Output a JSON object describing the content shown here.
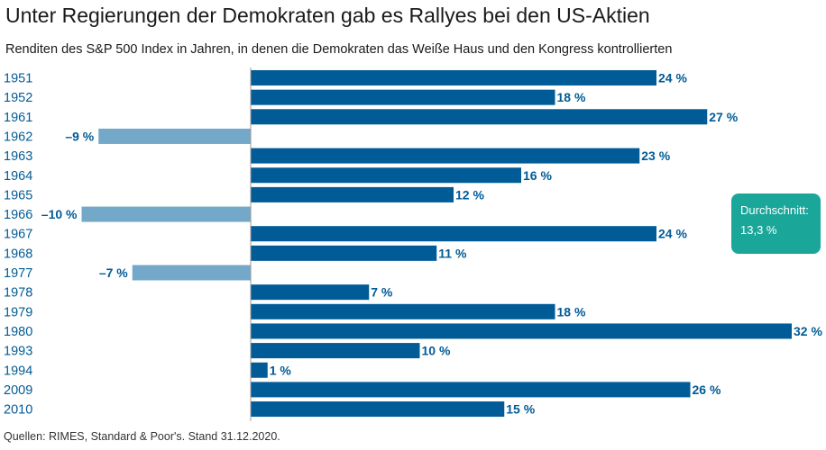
{
  "title": "Unter Regierungen der Demokraten gab es Rallyes bei den US-Aktien",
  "subtitle": "Renditen des S&P 500 Index in Jahren, in denen die Demokraten das Weiße Haus und den Kongress kontrollierten",
  "source": "Quellen: RIMES, Standard & Poor's. Stand 31.12.2020.",
  "callout": {
    "label": "Durchschnitt:",
    "value": "13,3 %"
  },
  "colors": {
    "positive": "#005b96",
    "negative": "#74a8c9",
    "label": "#005b96",
    "callout": "#1aa79a",
    "axis": "#999999"
  },
  "chart_data": {
    "type": "bar",
    "orientation": "horizontal",
    "title": "Unter Regierungen der Demokraten gab es Rallyes bei den US-Aktien",
    "xlabel": "",
    "ylabel": "",
    "xlim": [
      -15,
      34
    ],
    "grid": false,
    "categories": [
      "1951",
      "1952",
      "1961",
      "1962",
      "1963",
      "1964",
      "1965",
      "1966",
      "1967",
      "1968",
      "1977",
      "1978",
      "1979",
      "1980",
      "1993",
      "1994",
      "2009",
      "2010"
    ],
    "values": [
      24,
      18,
      27,
      -9,
      23,
      16,
      12,
      -10,
      24,
      11,
      -7,
      7,
      18,
      32,
      10,
      1,
      26,
      15
    ],
    "labels": [
      "24 %",
      "18 %",
      "27 %",
      "–9 %",
      "23 %",
      "16 %",
      "12 %",
      "–10 %",
      "24 %",
      "11 %",
      "–7 %",
      "7 %",
      "18 %",
      "32 %",
      "10 %",
      "1 %",
      "26 %",
      "15 %"
    ],
    "annotations": [
      {
        "text": "Durchschnitt: 13,3 %",
        "value": 13.3
      }
    ]
  }
}
